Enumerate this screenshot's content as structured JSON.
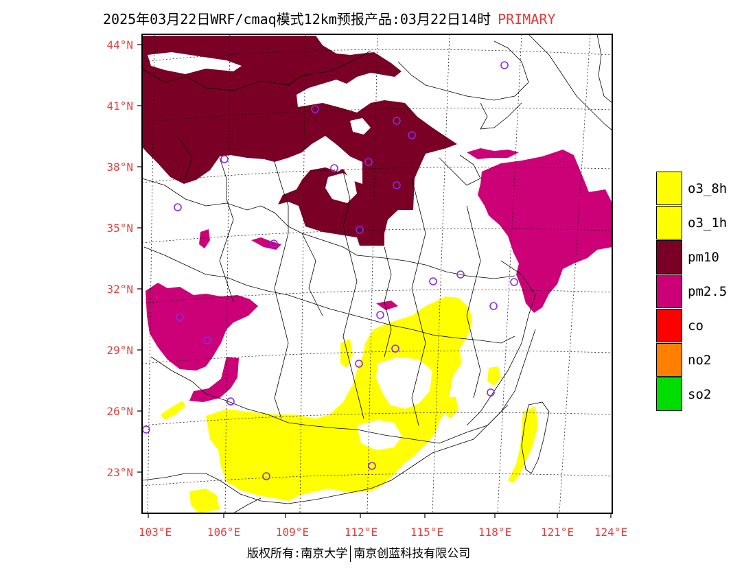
{
  "title": {
    "main": "2025年03月22日WRF/cmaq模式12km预报产品:03月22日14时",
    "highlight": "PRIMARY"
  },
  "axes": {
    "lat_labels": [
      "44°N",
      "41°N",
      "38°N",
      "35°N",
      "32°N",
      "29°N",
      "26°N",
      "23°N"
    ],
    "lon_labels": [
      "103°E",
      "106°E",
      "109°E",
      "112°E",
      "115°E",
      "118°E",
      "121°E",
      "124°E"
    ],
    "label_color": "#e04040"
  },
  "legend": [
    {
      "label": "o3_8h",
      "color": "#ffff00"
    },
    {
      "label": "o3_1h",
      "color": "#ffff00"
    },
    {
      "label": "pm10",
      "color": "#7a0026"
    },
    {
      "label": "pm2.5",
      "color": "#cc0077"
    },
    {
      "label": "co",
      "color": "#ff0000"
    },
    {
      "label": "no2",
      "color": "#ff7f00"
    },
    {
      "label": "so2",
      "color": "#00dd00"
    }
  ],
  "footer": {
    "left": "版权所有:南京大学",
    "right": "南京创蓝科技有限公司"
  },
  "colors": {
    "pm10": "#7a0026",
    "pm25": "#cc0077",
    "o3": "#ffff00",
    "station": "#8a2be2"
  }
}
